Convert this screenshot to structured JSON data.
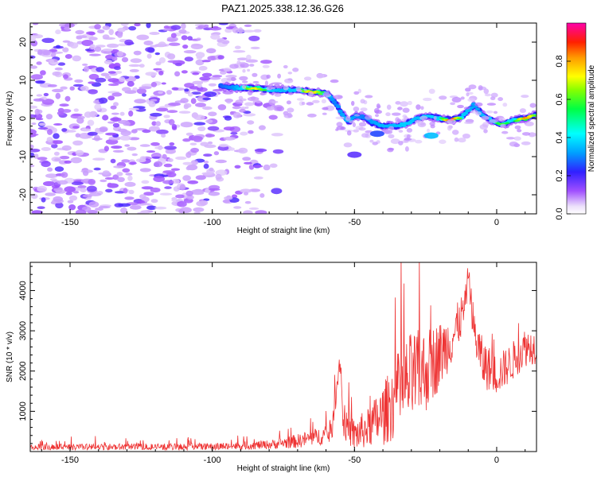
{
  "title": "PAZ1.2025.338.12.36.G26",
  "chart_data": [
    {
      "type": "heatmap",
      "xlabel": "Height of straight line (km)",
      "ylabel": "Frequency (Hz)",
      "xlim": [
        -164,
        14
      ],
      "ylim": [
        -25,
        25
      ],
      "x_ticks": [
        -150,
        -100,
        -50,
        0
      ],
      "y_ticks": [
        -20,
        -10,
        0,
        10,
        20
      ],
      "noise_region_x": [
        -164,
        -95
      ],
      "noise_fade_x": [
        -100,
        -75
      ],
      "signal_track": [
        {
          "x": -97,
          "y": 8.5,
          "v": 0.3
        },
        {
          "x": -92,
          "y": 8.0,
          "v": 0.4
        },
        {
          "x": -85,
          "y": 8.0,
          "v": 0.75
        },
        {
          "x": -80,
          "y": 7.5,
          "v": 0.5
        },
        {
          "x": -75,
          "y": 7.5,
          "v": 0.45
        },
        {
          "x": -70,
          "y": 7.5,
          "v": 0.5
        },
        {
          "x": -65,
          "y": 7.0,
          "v": 0.8
        },
        {
          "x": -60,
          "y": 6.5,
          "v": 0.5
        },
        {
          "x": -57,
          "y": 4.5,
          "v": 0.35
        },
        {
          "x": -55,
          "y": 2.0,
          "v": 0.4
        },
        {
          "x": -52,
          "y": -1.0,
          "v": 0.45
        },
        {
          "x": -50,
          "y": 0.5,
          "v": 0.4
        },
        {
          "x": -47,
          "y": 0.5,
          "v": 0.35
        },
        {
          "x": -44,
          "y": -1.0,
          "v": 0.4
        },
        {
          "x": -40,
          "y": -2.0,
          "v": 0.45
        },
        {
          "x": -36,
          "y": -2.0,
          "v": 0.45
        },
        {
          "x": -32,
          "y": -1.5,
          "v": 0.5
        },
        {
          "x": -28,
          "y": 0.0,
          "v": 0.45
        },
        {
          "x": -24,
          "y": 0.5,
          "v": 0.5
        },
        {
          "x": -20,
          "y": 0.0,
          "v": 0.5
        },
        {
          "x": -16,
          "y": -0.5,
          "v": 0.95
        },
        {
          "x": -12,
          "y": 0.5,
          "v": 0.5
        },
        {
          "x": -8,
          "y": 3.5,
          "v": 0.4
        },
        {
          "x": -5,
          "y": 1.0,
          "v": 0.45
        },
        {
          "x": -2,
          "y": -0.5,
          "v": 0.5
        },
        {
          "x": 2,
          "y": -1.5,
          "v": 0.6
        },
        {
          "x": 6,
          "y": -0.5,
          "v": 0.5
        },
        {
          "x": 10,
          "y": 0.0,
          "v": 0.85
        },
        {
          "x": 14,
          "y": 1.0,
          "v": 0.6
        }
      ],
      "side_blobs": [
        {
          "x": -50,
          "y": -9.5,
          "v": 0.18
        },
        {
          "x": -23,
          "y": -4.5,
          "v": 0.35
        },
        {
          "x": -42,
          "y": -4.0,
          "v": 0.25
        }
      ]
    },
    {
      "type": "colorbar",
      "label": "Normalized spectral amplitude",
      "range": [
        0,
        1
      ],
      "ticks": [
        "0.0",
        "0.2",
        "0.4",
        "0.6",
        "0.8"
      ],
      "tick_values": [
        0.0,
        0.2,
        0.4,
        0.6,
        0.8
      ]
    },
    {
      "type": "line",
      "color": "#ee3333",
      "xlabel": "Height of straight line (km)",
      "ylabel": "SNR (10 * v/v)",
      "xlim": [
        -164,
        14
      ],
      "ylim": [
        0,
        4700
      ],
      "x_ticks": [
        -150,
        -100,
        -50,
        0
      ],
      "y_ticks": [
        1000,
        2000,
        3000,
        4000
      ],
      "envelope": [
        {
          "x": -164,
          "base": 100,
          "amp": 120
        },
        {
          "x": -100,
          "base": 120,
          "amp": 130
        },
        {
          "x": -80,
          "base": 170,
          "amp": 160
        },
        {
          "x": -70,
          "base": 260,
          "amp": 250
        },
        {
          "x": -58,
          "base": 450,
          "amp": 350
        },
        {
          "x": -55,
          "base": 2400,
          "amp": 500
        },
        {
          "x": -54,
          "base": 700,
          "amp": 500
        },
        {
          "x": -50,
          "base": 400,
          "amp": 600
        },
        {
          "x": -45,
          "base": 600,
          "amp": 700
        },
        {
          "x": -40,
          "base": 900,
          "amp": 1100
        },
        {
          "x": -35,
          "base": 1400,
          "amp": 1500
        },
        {
          "x": -30,
          "base": 1800,
          "amp": 1700
        },
        {
          "x": -25,
          "base": 2000,
          "amp": 1500
        },
        {
          "x": -20,
          "base": 2400,
          "amp": 1200
        },
        {
          "x": -15,
          "base": 2900,
          "amp": 900
        },
        {
          "x": -11,
          "base": 3600,
          "amp": 700
        },
        {
          "x": -10,
          "base": 4500,
          "amp": 300
        },
        {
          "x": -8,
          "base": 3000,
          "amp": 800
        },
        {
          "x": -5,
          "base": 2200,
          "amp": 900
        },
        {
          "x": 0,
          "base": 1900,
          "amp": 700
        },
        {
          "x": 5,
          "base": 2200,
          "amp": 700
        },
        {
          "x": 10,
          "base": 2600,
          "amp": 700
        },
        {
          "x": 14,
          "base": 2600,
          "amp": 600
        }
      ]
    }
  ]
}
